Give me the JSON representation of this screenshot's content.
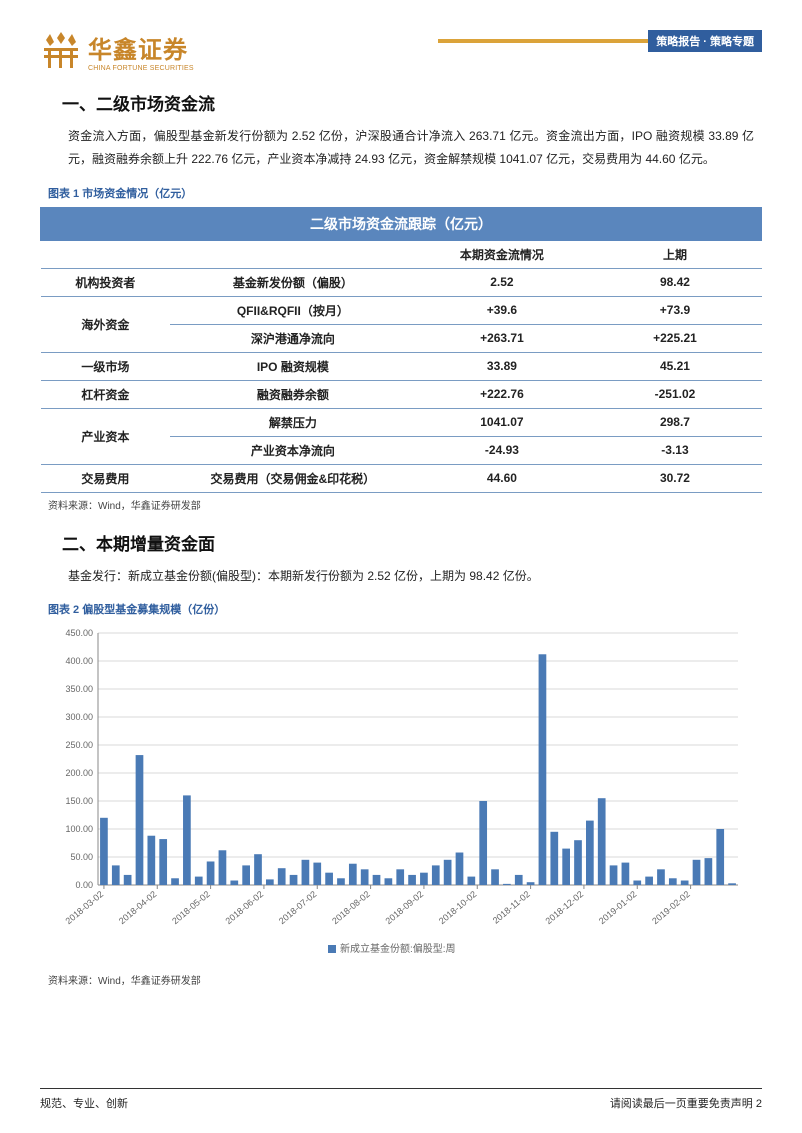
{
  "header": {
    "logo_cn": "华鑫证券",
    "logo_en": "CHINA FORTUNE SECURITIES",
    "tag": "策略报告 · 策略专题"
  },
  "s1": {
    "title": "一、二级市场资金流",
    "para": "资金流入方面，偏股型基金新发行份额为 2.52 亿份，沪深股通合计净流入 263.71 亿元。资金流出方面，IPO 融资规模 33.89 亿元，融资融券余额上升 222.76 亿元，产业资本净减持 24.93 亿元，资金解禁规模 1041.07 亿元，交易费用为 44.60 亿元。",
    "fig_cap": "图表 1 市场资金情况（亿元）",
    "src": "资料来源：Wind，华鑫证券研发部"
  },
  "table": {
    "title": "二级市场资金流跟踪（亿元）",
    "col1": "本期资金流情况",
    "col2": "上期",
    "rows": [
      {
        "g": "机构投资者",
        "m": "基金新发份额（偏股）",
        "a": "2.52",
        "b": "98.42",
        "rs": 1
      },
      {
        "g": "海外资金",
        "m": "QFII&RQFII（按月）",
        "a": "+39.6",
        "b": "+73.9",
        "rs": 2
      },
      {
        "g": "",
        "m": "深沪港通净流向",
        "a": "+263.71",
        "b": "+225.21",
        "rs": 0
      },
      {
        "g": "一级市场",
        "m": "IPO 融资规模",
        "a": "33.89",
        "b": "45.21",
        "rs": 1
      },
      {
        "g": "杠杆资金",
        "m": "融资融券余额",
        "a": "+222.76",
        "b": "-251.02",
        "rs": 1
      },
      {
        "g": "产业资本",
        "m": "解禁压力",
        "a": "1041.07",
        "b": "298.7",
        "rs": 2
      },
      {
        "g": "",
        "m": "产业资本净流向",
        "a": "-24.93",
        "b": "-3.13",
        "rs": 0
      },
      {
        "g": "交易费用",
        "m": "交易费用（交易佣金&印花税）",
        "a": "44.60",
        "b": "30.72",
        "rs": 1
      }
    ]
  },
  "s2": {
    "title": "二、本期增量资金面",
    "para": "基金发行：新成立基金份额(偏股型)：本期新发行份额为 2.52 亿份，上期为 98.42 亿份。",
    "fig_cap": "图表 2 偏股型基金募集规模（亿份）",
    "src": "资料来源：Wind，华鑫证券研发部"
  },
  "chart": {
    "type": "bar",
    "ylim": [
      0,
      450
    ],
    "ytick_step": 50,
    "yticks": [
      "0.00",
      "50.00",
      "100.00",
      "150.00",
      "200.00",
      "250.00",
      "300.00",
      "350.00",
      "400.00",
      "450.00"
    ],
    "bar_color": "#4a7ab5",
    "grid_color": "#d9d9d9",
    "axis_color": "#888",
    "text_color": "#666",
    "label_fontsize": 9,
    "tick_fontsize": 9,
    "legend": "新成立基金份额:偏股型:周",
    "x_major_labels": [
      "2018-03-02",
      "2018-04-02",
      "2018-05-02",
      "2018-06-02",
      "2018-07-02",
      "2018-08-02",
      "2018-09-02",
      "2018-10-02",
      "2018-11-02",
      "2018-12-02",
      "2019-01-02",
      "2019-02-02"
    ],
    "values": [
      120,
      35,
      18,
      232,
      88,
      82,
      12,
      160,
      15,
      42,
      62,
      8,
      35,
      55,
      10,
      30,
      18,
      45,
      40,
      22,
      12,
      38,
      28,
      18,
      12,
      28,
      18,
      22,
      35,
      45,
      58,
      15,
      150,
      28,
      2,
      18,
      5,
      412,
      95,
      65,
      80,
      115,
      155,
      35,
      40,
      8,
      15,
      28,
      12,
      8,
      45,
      48,
      100,
      3
    ]
  },
  "footer": {
    "left": "规范、专业、创新",
    "right": "请阅读最后一页重要免责声明 2"
  },
  "colors": {
    "brand": "#c8862a",
    "accent_blue": "#305e9e",
    "table_header": "#5a86bd",
    "bar_gold": "#dba33a"
  }
}
